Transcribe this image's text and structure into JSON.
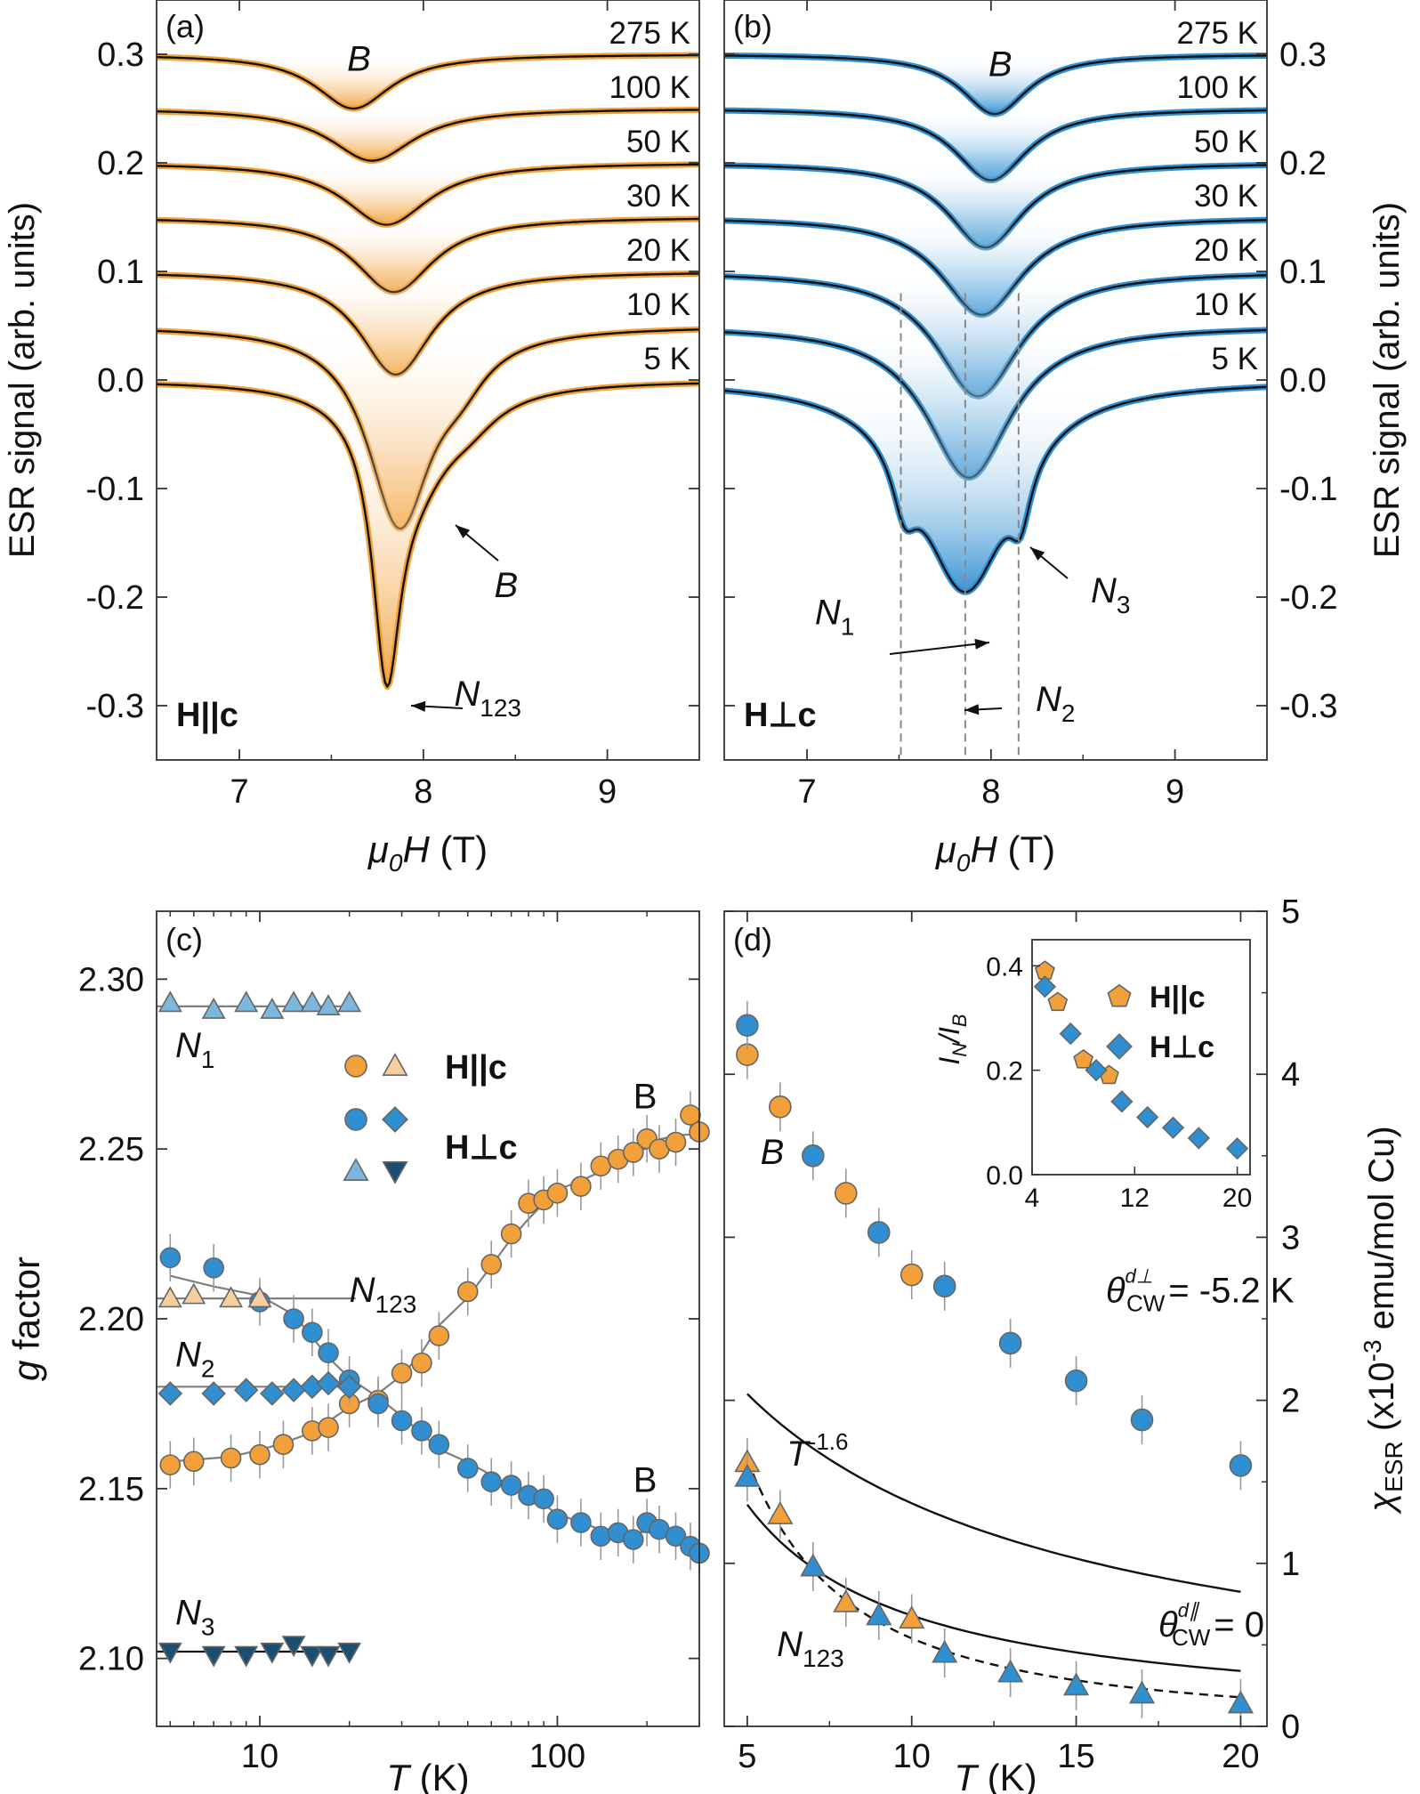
{
  "colors": {
    "orange": "#f2a13a",
    "blue": "#2f8fd0",
    "dark_blue": "#1b4f72",
    "light_orange": "#f7cf9e",
    "fit": "#111111",
    "grey_fit": "#7f7f7f"
  },
  "chart_data": [
    {
      "panel": "a",
      "panel_label": "(a)",
      "type": "line",
      "title": "",
      "xlabel_symbol": "μ",
      "xlabel_sub": "0",
      "xlabel_symbol2": "H",
      "xlabel_unit": "(T)",
      "ylabel": "ESR signal (arb. units)",
      "xlim": [
        6.55,
        9.5
      ],
      "ylim": [
        -0.35,
        0.35
      ],
      "xticks": [
        "7",
        "8",
        "9"
      ],
      "xtick_values": [
        7,
        8,
        9
      ],
      "yticks": [
        "0.3",
        "0.2",
        "0.1",
        "0.0",
        "-0.1",
        "-0.2",
        "-0.3"
      ],
      "ytick_values": [
        0.3,
        0.2,
        0.1,
        0.0,
        -0.1,
        -0.2,
        -0.3
      ],
      "orientation_label": "H||c",
      "series": [
        {
          "name": "275 K",
          "baseline": 0.3,
          "components": [
            [
              7.62,
              0.05,
              0.25
            ]
          ]
        },
        {
          "name": "100 K",
          "baseline": 0.25,
          "components": [
            [
              7.72,
              0.048,
              0.28
            ]
          ]
        },
        {
          "name": "50 K",
          "baseline": 0.2,
          "components": [
            [
              7.8,
              0.057,
              0.28
            ]
          ]
        },
        {
          "name": "30 K",
          "baseline": 0.15,
          "components": [
            [
              7.84,
              0.069,
              0.26
            ]
          ]
        },
        {
          "name": "20 K",
          "baseline": 0.1,
          "components": [
            [
              7.85,
              0.095,
              0.24
            ]
          ]
        },
        {
          "name": "10 K",
          "baseline": 0.05,
          "components": [
            [
              7.87,
              0.18,
              0.21
            ],
            [
              8.2,
              0.03,
              0.18
            ]
          ]
        },
        {
          "name": "5 K",
          "baseline": 0.0,
          "components": [
            [
              7.8,
              0.22,
              0.09
            ],
            [
              7.95,
              0.08,
              0.25
            ],
            [
              8.25,
              0.02,
              0.2
            ]
          ]
        }
      ],
      "annotations": [
        {
          "text": "B",
          "x": 7.65,
          "y": 0.285
        },
        {
          "text": "B",
          "x": 8.45,
          "y": -0.2
        },
        {
          "text": "N",
          "sub": "123",
          "x": 8.35,
          "y": -0.3
        }
      ]
    },
    {
      "panel": "b",
      "panel_label": "(b)",
      "type": "line",
      "xlabel_symbol": "μ",
      "xlabel_sub": "0",
      "xlabel_symbol2": "H",
      "xlabel_unit": "(T)",
      "ylabel": "ESR signal (arb. units)",
      "xlim": [
        6.55,
        9.5
      ],
      "ylim": [
        -0.35,
        0.35
      ],
      "xticks": [
        "7",
        "8",
        "9"
      ],
      "xtick_values": [
        7,
        8,
        9
      ],
      "yticks": [
        "0.3",
        "0.2",
        "0.1",
        "0.0",
        "-0.1",
        "-0.2",
        "-0.3"
      ],
      "ytick_values": [
        0.3,
        0.2,
        0.1,
        0.0,
        -0.1,
        -0.2,
        -0.3
      ],
      "orientation_label": "H⊥c",
      "series": [
        {
          "name": "275 K",
          "baseline": 0.3,
          "components": [
            [
              8.02,
              0.055,
              0.22
            ]
          ]
        },
        {
          "name": "100 K",
          "baseline": 0.25,
          "components": [
            [
              8.0,
              0.066,
              0.24
            ]
          ]
        },
        {
          "name": "50 K",
          "baseline": 0.2,
          "components": [
            [
              7.97,
              0.078,
              0.25
            ]
          ]
        },
        {
          "name": "30 K",
          "baseline": 0.15,
          "components": [
            [
              7.95,
              0.09,
              0.27
            ]
          ]
        },
        {
          "name": "20 K",
          "baseline": 0.1,
          "components": [
            [
              7.93,
              0.115,
              0.28
            ]
          ]
        },
        {
          "name": "10 K",
          "baseline": 0.05,
          "components": [
            [
              7.88,
              0.14,
              0.28
            ]
          ]
        },
        {
          "name": "5 K",
          "baseline": 0.0,
          "components": [
            [
              7.86,
              0.19,
              0.3
            ],
            [
              7.53,
              0.05,
              0.08
            ],
            [
              8.16,
              0.05,
              0.07
            ]
          ]
        }
      ],
      "guide_lines_x": [
        7.51,
        7.86,
        8.15
      ],
      "annotations": [
        {
          "text": "B",
          "x": 8.05,
          "y": 0.28
        },
        {
          "text": "N",
          "sub": "1",
          "x": 7.15,
          "y": -0.225
        },
        {
          "text": "N",
          "sub": "2",
          "x": 8.35,
          "y": -0.305
        },
        {
          "text": "N",
          "sub": "3",
          "x": 8.65,
          "y": -0.205
        }
      ]
    },
    {
      "panel": "c",
      "panel_label": "(c)",
      "type": "scatter",
      "x_scale": "log",
      "xlabel_symbol": "T",
      "xlabel_unit": "(K)",
      "ylabel_symbol": "g",
      "ylabel": "factor",
      "xlim": [
        4.5,
        300
      ],
      "ylim": [
        2.08,
        2.32
      ],
      "xticks": [
        "10",
        "100"
      ],
      "xtick_values": [
        10,
        100
      ],
      "yticks": [
        "2.30",
        "2.25",
        "2.20",
        "2.15",
        "2.10"
      ],
      "ytick_values": [
        2.3,
        2.25,
        2.2,
        2.15,
        2.1
      ],
      "legend": [
        {
          "label": "H||c",
          "markers": [
            "circle-orange",
            "triangle-light-orange"
          ]
        },
        {
          "label": "H⊥c",
          "markers": [
            "circle-blue",
            "diamond-blue",
            "triangle-blue",
            "triangle-down-dark"
          ]
        }
      ],
      "series": [
        {
          "name": "B H||c",
          "marker": "circle",
          "color": "#f2a13a",
          "x": [
            5,
            6,
            8,
            10,
            12,
            15,
            17,
            20,
            25,
            30,
            35,
            40,
            50,
            60,
            70,
            80,
            90,
            100,
            120,
            140,
            160,
            180,
            200,
            220,
            250,
            280,
            300
          ],
          "y": [
            2.157,
            2.158,
            2.159,
            2.16,
            2.163,
            2.167,
            2.168,
            2.175,
            2.176,
            2.184,
            2.187,
            2.195,
            2.208,
            2.216,
            2.225,
            2.234,
            2.235,
            2.237,
            2.239,
            2.245,
            2.247,
            2.249,
            2.253,
            2.25,
            2.252,
            2.26,
            2.255
          ]
        },
        {
          "name": "B H⊥c",
          "marker": "circle",
          "color": "#2f8fd0",
          "x": [
            5,
            7,
            10,
            13,
            15,
            17,
            20,
            25,
            30,
            35,
            40,
            50,
            60,
            70,
            80,
            90,
            100,
            120,
            140,
            160,
            180,
            200,
            220,
            250,
            280,
            300
          ],
          "y": [
            2.218,
            2.215,
            2.205,
            2.2,
            2.196,
            2.19,
            2.182,
            2.175,
            2.17,
            2.167,
            2.163,
            2.156,
            2.152,
            2.151,
            2.148,
            2.147,
            2.141,
            2.14,
            2.136,
            2.137,
            2.135,
            2.14,
            2.138,
            2.136,
            2.133,
            2.131
          ]
        },
        {
          "name": "N1 H⊥c",
          "marker": "triangle",
          "color": "#7db8dc",
          "x": [
            5,
            7,
            9,
            11,
            13,
            15,
            17,
            20
          ],
          "y": [
            2.293,
            2.291,
            2.293,
            2.291,
            2.293,
            2.293,
            2.292,
            2.293
          ]
        },
        {
          "name": "N123 H||c",
          "marker": "triangle",
          "color": "#f7cf9e",
          "x": [
            5,
            6,
            8,
            10
          ],
          "y": [
            2.206,
            2.207,
            2.206,
            2.206
          ]
        },
        {
          "name": "N2 H⊥c",
          "marker": "diamond",
          "color": "#2f8fd0",
          "x": [
            5,
            7,
            9,
            11,
            13,
            15,
            17,
            20
          ],
          "y": [
            2.178,
            2.178,
            2.179,
            2.178,
            2.179,
            2.18,
            2.181,
            2.18
          ]
        },
        {
          "name": "N3 H⊥c",
          "marker": "triangle-down",
          "color": "#1b4f72",
          "x": [
            5,
            7,
            9,
            11,
            13,
            15,
            17,
            20
          ],
          "y": [
            2.102,
            2.101,
            2.101,
            2.102,
            2.104,
            2.101,
            2.101,
            2.102
          ]
        }
      ],
      "fit_lines": [
        {
          "name": "N1 fit",
          "y": 2.292,
          "x_from": 4.5,
          "x_to": 21
        },
        {
          "name": "N123 fit",
          "y": 2.206,
          "x_from": 4.5,
          "x_to": 21
        },
        {
          "name": "N2 fit",
          "y": 2.18,
          "x_from": 4.5,
          "x_to": 21
        },
        {
          "name": "N3 fit",
          "y": 2.102,
          "x_from": 4.5,
          "x_to": 21
        }
      ],
      "annotations": [
        {
          "text": "N",
          "sub": "1",
          "x": 5.2,
          "y": 2.277
        },
        {
          "text": "N",
          "sub": "123",
          "x": 20,
          "y": 2.205
        },
        {
          "text": "N",
          "sub": "2",
          "x": 5.2,
          "y": 2.186
        },
        {
          "text": "N",
          "sub": "3",
          "x": 5.2,
          "y": 2.11
        },
        {
          "text": "B",
          "x": 180,
          "y": 2.262
        },
        {
          "text": "B",
          "x": 180,
          "y": 2.149
        }
      ]
    },
    {
      "panel": "d",
      "panel_label": "(d)",
      "type": "scatter",
      "xlabel_symbol": "T",
      "xlabel_unit": "(K)",
      "ylabel_symbol": "χ",
      "ylabel_sub": "ESR",
      "ylabel_unit": "(x10",
      "ylabel_exp": "-3",
      "ylabel_rest": "emu/mol Cu)",
      "xlim": [
        4.3,
        20.8
      ],
      "ylim": [
        0,
        5
      ],
      "xticks": [
        "5",
        "10",
        "15",
        "20"
      ],
      "xtick_values": [
        5,
        10,
        15,
        20
      ],
      "yticks": [
        "5",
        "4",
        "3",
        "2",
        "1",
        "0"
      ],
      "ytick_values": [
        5,
        4,
        3,
        2,
        1,
        0
      ],
      "series": [
        {
          "name": "B H||c",
          "marker": "circle",
          "color": "#f2a13a",
          "x": [
            5,
            6,
            8,
            10
          ],
          "y": [
            4.12,
            3.8,
            3.27,
            2.77
          ]
        },
        {
          "name": "B H⊥c",
          "marker": "circle",
          "color": "#2f8fd0",
          "x": [
            5,
            7,
            9,
            11,
            13,
            15,
            17,
            20
          ],
          "y": [
            4.3,
            3.5,
            3.03,
            2.7,
            2.35,
            2.12,
            1.88,
            1.6
          ]
        },
        {
          "name": "N123 H||c",
          "marker": "triangle",
          "color": "#f2a13a",
          "x": [
            5,
            6,
            8,
            10
          ],
          "y": [
            1.62,
            1.3,
            0.76,
            0.66
          ]
        },
        {
          "name": "N123 H⊥c",
          "marker": "triangle",
          "color": "#2f8fd0",
          "x": [
            5,
            7,
            9,
            11,
            13,
            15,
            17,
            20
          ],
          "y": [
            1.53,
            0.98,
            0.68,
            0.45,
            0.33,
            0.25,
            0.2,
            0.14
          ]
        }
      ],
      "fits": [
        {
          "name": "B Curie-Weiss",
          "style": "solid",
          "C": 20.8,
          "theta": -5.2
        },
        {
          "name": "N123 Curie-Weiss",
          "style": "solid",
          "C": 6.8,
          "theta": 0
        },
        {
          "name": "N123 power law",
          "style": "dashed",
          "A": 21.5,
          "exponent": -1.6
        }
      ],
      "annotations": [
        {
          "text": "B",
          "x": 5.4,
          "y": 3.45
        },
        {
          "text": "N",
          "sub": "123",
          "x": 5.9,
          "y": 0.43
        },
        {
          "text": "T",
          "sup": "-1.6",
          "x": 6.2,
          "y": 1.6
        },
        {
          "text": "θ",
          "sub": "CW",
          "sup": "d⊥",
          "rest": "= -5.2 K",
          "x": 15.9,
          "y": 2.6
        },
        {
          "text": "θ",
          "sub": "CW",
          "sup": "d∥",
          "rest": "= 0",
          "x": 17.5,
          "y": 0.55
        }
      ],
      "inset": {
        "type": "scatter",
        "ylabel": "I",
        "ylabel_sub": "N",
        "ylabel_mid": "/I",
        "ylabel_sub2": "B",
        "xlim": [
          4,
          21
        ],
        "ylim": [
          0,
          0.45
        ],
        "xticks": [
          "4",
          "12",
          "20"
        ],
        "xtick_values": [
          4,
          12,
          20
        ],
        "yticks": [
          "0.4",
          "0.2",
          "0.0"
        ],
        "ytick_values": [
          0.4,
          0.2,
          0.0
        ],
        "legend": [
          {
            "label": "H||c",
            "marker": "pentagon",
            "color": "#f2a13a"
          },
          {
            "label": "H⊥c",
            "marker": "diamond",
            "color": "#2f8fd0"
          }
        ],
        "series": [
          {
            "name": "H||c",
            "marker": "pentagon",
            "color": "#f2a13a",
            "x": [
              5,
              6,
              8,
              10
            ],
            "y": [
              0.39,
              0.33,
              0.22,
              0.19
            ]
          },
          {
            "name": "H⊥c",
            "marker": "diamond",
            "color": "#2f8fd0",
            "x": [
              5,
              7,
              9,
              11,
              13,
              15,
              17,
              20
            ],
            "y": [
              0.36,
              0.27,
              0.2,
              0.14,
              0.11,
              0.09,
              0.07,
              0.05
            ]
          }
        ]
      }
    }
  ]
}
